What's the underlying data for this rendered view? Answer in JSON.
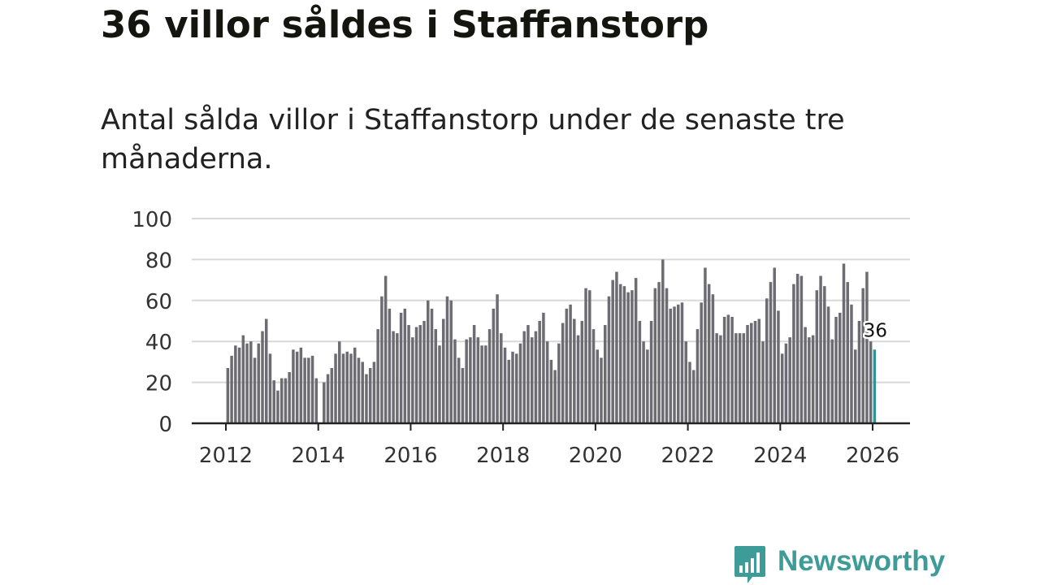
{
  "header": {
    "title": "36 villor såldes i Staffanstorp",
    "subtitle": "Antal sålda villor i Staffanstorp under de senaste tre månaderna."
  },
  "brand": {
    "name": "Newsworthy",
    "color": "#3d9b98"
  },
  "colors": {
    "bar": "#6d6c72",
    "highlight": "#1b9e9a",
    "grid": "#d8d8d8",
    "axis": "#222222",
    "tick_text": "#333333"
  },
  "chart_data": {
    "type": "bar",
    "title": "36 villor såldes i Staffanstorp",
    "subtitle": "Antal sålda villor i Staffanstorp under de senaste tre månaderna.",
    "xlabel": "",
    "ylabel": "",
    "ylim": [
      0,
      100
    ],
    "y_ticks": [
      0,
      20,
      40,
      60,
      80,
      100
    ],
    "x_ticks": [
      2012,
      2014,
      2016,
      2018,
      2020,
      2022,
      2024,
      2026
    ],
    "x_range_years": [
      2011.5,
      2026.85
    ],
    "start": "2012-01",
    "frequency": "monthly",
    "grid": true,
    "legend": "none",
    "highlight_last": true,
    "annotation": {
      "text": "36",
      "target": "last"
    },
    "series": [
      {
        "name": "Antal sålda villor",
        "values": [
          27,
          33,
          38,
          37,
          43,
          39,
          40,
          32,
          39,
          45,
          51,
          34,
          21,
          16,
          22,
          22,
          25,
          36,
          35,
          37,
          32,
          32,
          33,
          22,
          null,
          20,
          24,
          27,
          34,
          40,
          34,
          35,
          34,
          37,
          32,
          30,
          24,
          27,
          30,
          46,
          62,
          72,
          56,
          45,
          44,
          54,
          56,
          48,
          42,
          47,
          48,
          50,
          60,
          56,
          46,
          38,
          51,
          62,
          60,
          41,
          32,
          27,
          41,
          42,
          48,
          42,
          38,
          38,
          46,
          56,
          63,
          44,
          37,
          31,
          35,
          34,
          39,
          45,
          48,
          42,
          45,
          50,
          54,
          40,
          31,
          26,
          39,
          49,
          56,
          58,
          51,
          43,
          50,
          66,
          65,
          46,
          36,
          32,
          48,
          62,
          70,
          74,
          68,
          67,
          64,
          65,
          71,
          50,
          40,
          36,
          50,
          66,
          69,
          80,
          66,
          56,
          57,
          58,
          59,
          40,
          30,
          26,
          46,
          59,
          76,
          68,
          63,
          44,
          43,
          52,
          53,
          52,
          44,
          44,
          44,
          48,
          49,
          50,
          51,
          40,
          61,
          69,
          76,
          55,
          34,
          39,
          42,
          68,
          73,
          72,
          47,
          42,
          43,
          65,
          72,
          67,
          57,
          41,
          52,
          54,
          78,
          69,
          58,
          36,
          50,
          66,
          74,
          40,
          36
        ]
      }
    ]
  }
}
